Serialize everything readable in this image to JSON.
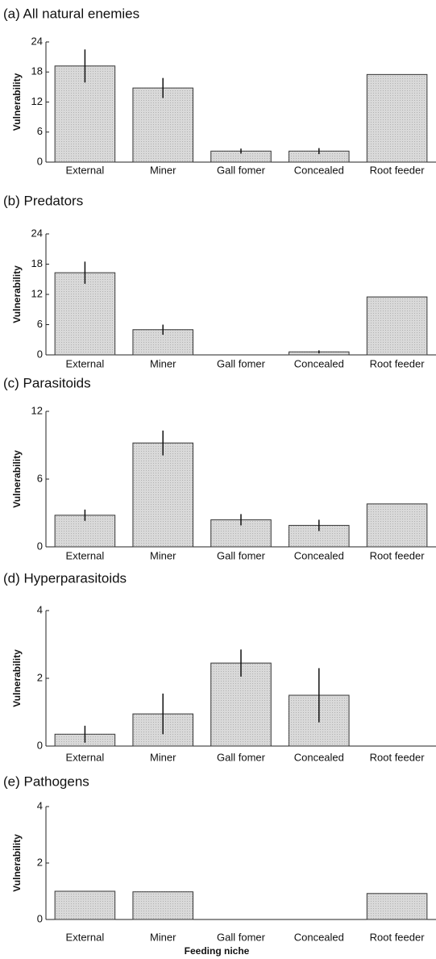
{
  "chart_data": [
    {
      "type": "bar",
      "title": "(a) All natural enemies",
      "y_label": "Vulnerability",
      "categories": [
        "External",
        "Miner",
        "Gall fomer",
        "Concealed",
        "Root feeder"
      ],
      "values": [
        19.2,
        14.8,
        2.2,
        2.2,
        17.5
      ],
      "errors": [
        3.3,
        2,
        0.5,
        0.6,
        null
      ],
      "ylim": [
        0,
        24
      ],
      "yticks": [
        0,
        6,
        12,
        18,
        24
      ],
      "color": "#d9d9d9"
    },
    {
      "type": "bar",
      "title": "(b) Predators",
      "y_label": "Vulnerability",
      "categories": [
        "External",
        "Miner",
        "Gall fomer",
        "Concealed",
        "Root feeder"
      ],
      "values": [
        16.3,
        5.0,
        0,
        0.6,
        11.5
      ],
      "errors": [
        2.2,
        1,
        null,
        0.3,
        null
      ],
      "ylim": [
        0,
        24
      ],
      "yticks": [
        0,
        6,
        12,
        18,
        24
      ],
      "color": "#d9d9d9"
    },
    {
      "type": "bar",
      "title": "(c) Parasitoids",
      "y_label": "Vulnerability",
      "categories": [
        "External",
        "Miner",
        "Gall fomer",
        "Concealed",
        "Root feeder"
      ],
      "values": [
        2.8,
        9.2,
        2.4,
        1.9,
        3.8
      ],
      "errors": [
        0.5,
        1.1,
        0.5,
        0.5,
        null
      ],
      "ylim": [
        0,
        12
      ],
      "yticks": [
        0,
        6,
        12
      ],
      "color": "#d9d9d9"
    },
    {
      "type": "bar",
      "title": "(d) Hyperparasitoids",
      "y_label": "Vulnerability",
      "categories": [
        "External",
        "Miner",
        "Gall fomer",
        "Concealed",
        "Root feeder"
      ],
      "values": [
        0.35,
        0.95,
        2.45,
        1.5,
        0
      ],
      "errors": [
        0.25,
        0.6,
        0.4,
        0.8,
        null
      ],
      "ylim": [
        0,
        4
      ],
      "yticks": [
        0,
        2,
        4
      ],
      "color": "#d9d9d9"
    },
    {
      "type": "bar",
      "title": "(e) Pathogens",
      "y_label": "Vulnerability",
      "x_label": "Feeding niche",
      "categories": [
        "External",
        "Miner",
        "Gall fomer",
        "Concealed",
        "Root feeder"
      ],
      "values": [
        1.0,
        0.98,
        0,
        0,
        0.92
      ],
      "ylim": [
        0,
        4
      ],
      "yticks": [
        0,
        2,
        4
      ],
      "color": "#d9d9d9"
    }
  ]
}
